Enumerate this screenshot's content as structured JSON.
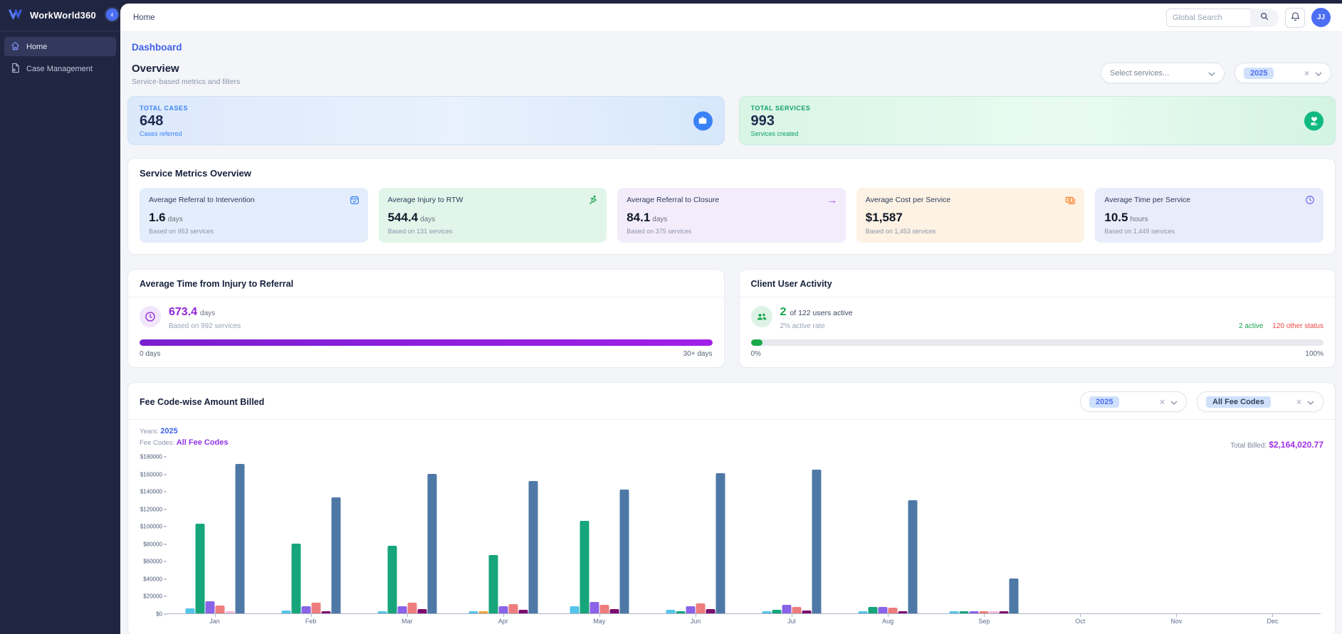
{
  "app": {
    "name": "WorkWorld360"
  },
  "sidebar": {
    "items": [
      {
        "label": "Home"
      },
      {
        "label": "Case Management"
      }
    ]
  },
  "topbar": {
    "breadcrumb": "Home",
    "search_placeholder": "Global Search",
    "avatar_initials": "JJ"
  },
  "page": {
    "title": "Dashboard",
    "overview": {
      "heading": "Overview",
      "subheading": "Service-based metrics and filters",
      "services_placeholder": "Select services...",
      "year_chip": "2025"
    },
    "summary_cards": [
      {
        "label": "TOTAL CASES",
        "value": "648",
        "sub": "Cases referred",
        "accent": "#3b82f6"
      },
      {
        "label": "TOTAL SERVICES",
        "value": "993",
        "sub": "Services created",
        "accent": "#10b981"
      }
    ],
    "metrics_section": {
      "heading": "Service Metrics Overview",
      "cards": [
        {
          "title": "Average Referral to Intervention",
          "value": "1.6",
          "unit": "days",
          "sub": "Based on 953 services"
        },
        {
          "title": "Average Injury to RTW",
          "value": "544.4",
          "unit": "days",
          "sub": "Based on 131 services"
        },
        {
          "title": "Average Referral to Closure",
          "value": "84.1",
          "unit": "days",
          "sub": "Based on 375 services"
        },
        {
          "title": "Average Cost per Service",
          "value": "$1,587",
          "unit": "",
          "sub": "Based on 1,453 services"
        },
        {
          "title": "Average Time per Service",
          "value": "10.5",
          "unit": "hours",
          "sub": "Based on 1,449 services"
        }
      ]
    },
    "injury_referral_card": {
      "title": "Average Time from Injury to Referral",
      "value": "673.4",
      "unit": "days",
      "sub": "Based on 992 services",
      "bar_min_label": "0 days",
      "bar_max_label": "30+ days",
      "progress_pct": 100
    },
    "user_activity_card": {
      "title": "Client User Activity",
      "active_count": "2",
      "of_text": "of 122 users active",
      "rate_text": "2% active rate",
      "active_label": "2 active",
      "other_label": "120 other status",
      "bar_min_label": "0%",
      "bar_max_label": "100%",
      "progress_pct": 2
    },
    "fee_chart_card": {
      "title": "Fee Code-wise Amount Billed",
      "year_chip": "2025",
      "fee_chip": "All Fee Codes",
      "years_label": "Years:",
      "years_value": "2025",
      "fee_codes_label": "Fee Codes:",
      "fee_codes_value": "All Fee Codes",
      "total_billed_label": "Total Billed:",
      "total_billed_value": "$2,164,020.77"
    }
  },
  "chart_data": {
    "type": "bar",
    "title": "Fee Code-wise Amount Billed",
    "categories": [
      "Jan",
      "Feb",
      "Mar",
      "Apr",
      "May",
      "Jun",
      "Jul",
      "Aug",
      "Sep",
      "Oct",
      "Nov",
      "Dec"
    ],
    "ylim": [
      0,
      180000
    ],
    "ytick_labels": [
      "$0",
      "$20000",
      "$40000",
      "$60000",
      "$80000",
      "$100000",
      "$120000",
      "$140000",
      "$160000",
      "$180000"
    ],
    "grid": false,
    "legend_position": "none",
    "series": [
      {
        "name": "light-blue",
        "color": "#55c4ea",
        "values": [
          5500,
          3500,
          2500,
          1500,
          8000,
          4500,
          2500,
          2500,
          1500,
          0,
          0,
          0
        ]
      },
      {
        "name": "orange",
        "color": "#f2a33c",
        "values": [
          0,
          0,
          0,
          1200,
          0,
          0,
          0,
          0,
          0,
          0,
          0,
          0
        ]
      },
      {
        "name": "green",
        "color": "#17a57b",
        "values": [
          103000,
          80000,
          78000,
          67500,
          106000,
          700,
          4500,
          7500,
          2500,
          0,
          0,
          0
        ]
      },
      {
        "name": "purple",
        "color": "#8a63e8",
        "values": [
          14000,
          8000,
          8000,
          8000,
          13500,
          8000,
          9500,
          7000,
          1500,
          0,
          0,
          0
        ]
      },
      {
        "name": "salmon",
        "color": "#ee7d7d",
        "values": [
          9000,
          12500,
          12500,
          10500,
          9500,
          11500,
          7000,
          6500,
          400,
          0,
          0,
          0
        ]
      },
      {
        "name": "light-pink",
        "color": "#f2b8d8",
        "values": [
          800,
          0,
          0,
          0,
          0,
          0,
          0,
          0,
          300,
          0,
          0,
          0
        ]
      },
      {
        "name": "dark-magenta",
        "color": "#7d0d6e",
        "values": [
          0,
          1500,
          5000,
          4000,
          5000,
          5000,
          3000,
          2000,
          1500,
          0,
          0,
          0
        ]
      },
      {
        "name": "steel-blue",
        "color": "#4e79a7",
        "values": [
          172000,
          133000,
          160000,
          152000,
          142000,
          161000,
          165000,
          130000,
          40000,
          0,
          0,
          0
        ]
      }
    ],
    "total_billed": "$2,164,020.77"
  }
}
